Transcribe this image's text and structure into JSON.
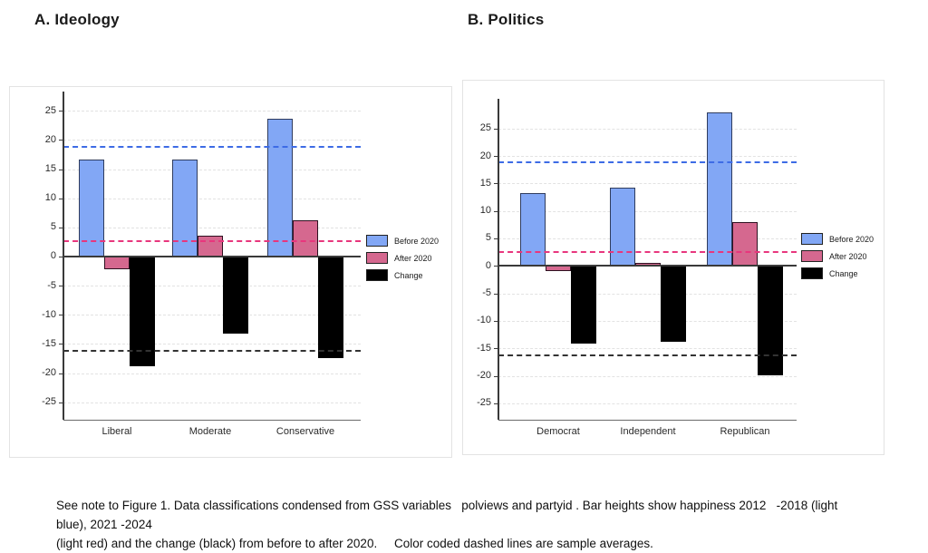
{
  "caption": {
    "line1": "See note to Figure 1. Data classifications condensed from GSS variables   polviews and partyid . Bar heights show happiness 2012   -2018 (light blue), 2021 -2024",
    "line2": "(light red) and the change (black) from before to after 2020.     Color coded dashed lines are sample averages."
  },
  "colors": {
    "before_fill": "#82A7F5",
    "before_border": "#2f3c5e",
    "after_fill": "#D5688F",
    "after_border": "#2e1020",
    "change_fill": "#000000",
    "ref_blue": "#3D6BE5",
    "ref_pink": "#E8367D",
    "ref_black": "#333333"
  },
  "chart_data": [
    {
      "type": "bar",
      "title": "A. Ideology",
      "categories": [
        "Liberal",
        "Moderate",
        "Conservative"
      ],
      "series": [
        {
          "name": "Before 2020",
          "color": "#82A7F5",
          "values": [
            16.7,
            16.7,
            23.7
          ]
        },
        {
          "name": "After 2020",
          "color": "#D5688F",
          "values": [
            -2.2,
            3.5,
            6.2
          ]
        },
        {
          "name": "Change",
          "color": "#000000",
          "values": [
            -18.9,
            -13.2,
            -17.5
          ]
        }
      ],
      "reference_lines": [
        {
          "name": "before-average",
          "value": 18.8,
          "color": "#3D6BE5"
        },
        {
          "name": "after-average",
          "value": 2.6,
          "color": "#E8367D"
        },
        {
          "name": "change-average",
          "value": -16.2,
          "color": "#333333"
        }
      ],
      "y_ticks": [
        25,
        20,
        15,
        10,
        5,
        0,
        -5,
        -10,
        -15,
        -20,
        -25
      ],
      "ylim": [
        -28.0,
        28.3
      ],
      "xlabel": "",
      "ylabel": "",
      "grid": true,
      "legend_position": "right"
    },
    {
      "type": "bar",
      "title": "B. Politics",
      "categories": [
        "Democrat",
        "Independent",
        "Republican"
      ],
      "series": [
        {
          "name": "Before 2020",
          "color": "#82A7F5",
          "values": [
            13.2,
            14.3,
            28.0
          ]
        },
        {
          "name": "After 2020",
          "color": "#D5688F",
          "values": [
            -0.9,
            0.5,
            8.0
          ]
        },
        {
          "name": "Change",
          "color": "#000000",
          "values": [
            -14.1,
            -13.8,
            -20.0
          ]
        }
      ],
      "reference_lines": [
        {
          "name": "before-average",
          "value": 18.8,
          "color": "#3D6BE5"
        },
        {
          "name": "after-average",
          "value": 2.5,
          "color": "#E8367D"
        },
        {
          "name": "change-average",
          "value": -16.3,
          "color": "#333333"
        }
      ],
      "y_ticks": [
        25,
        20,
        15,
        10,
        5,
        0,
        -5,
        -10,
        -15,
        -20,
        -25
      ],
      "ylim": [
        -28.0,
        30.4
      ],
      "xlabel": "",
      "ylabel": "",
      "grid": true,
      "legend_position": "right"
    }
  ]
}
